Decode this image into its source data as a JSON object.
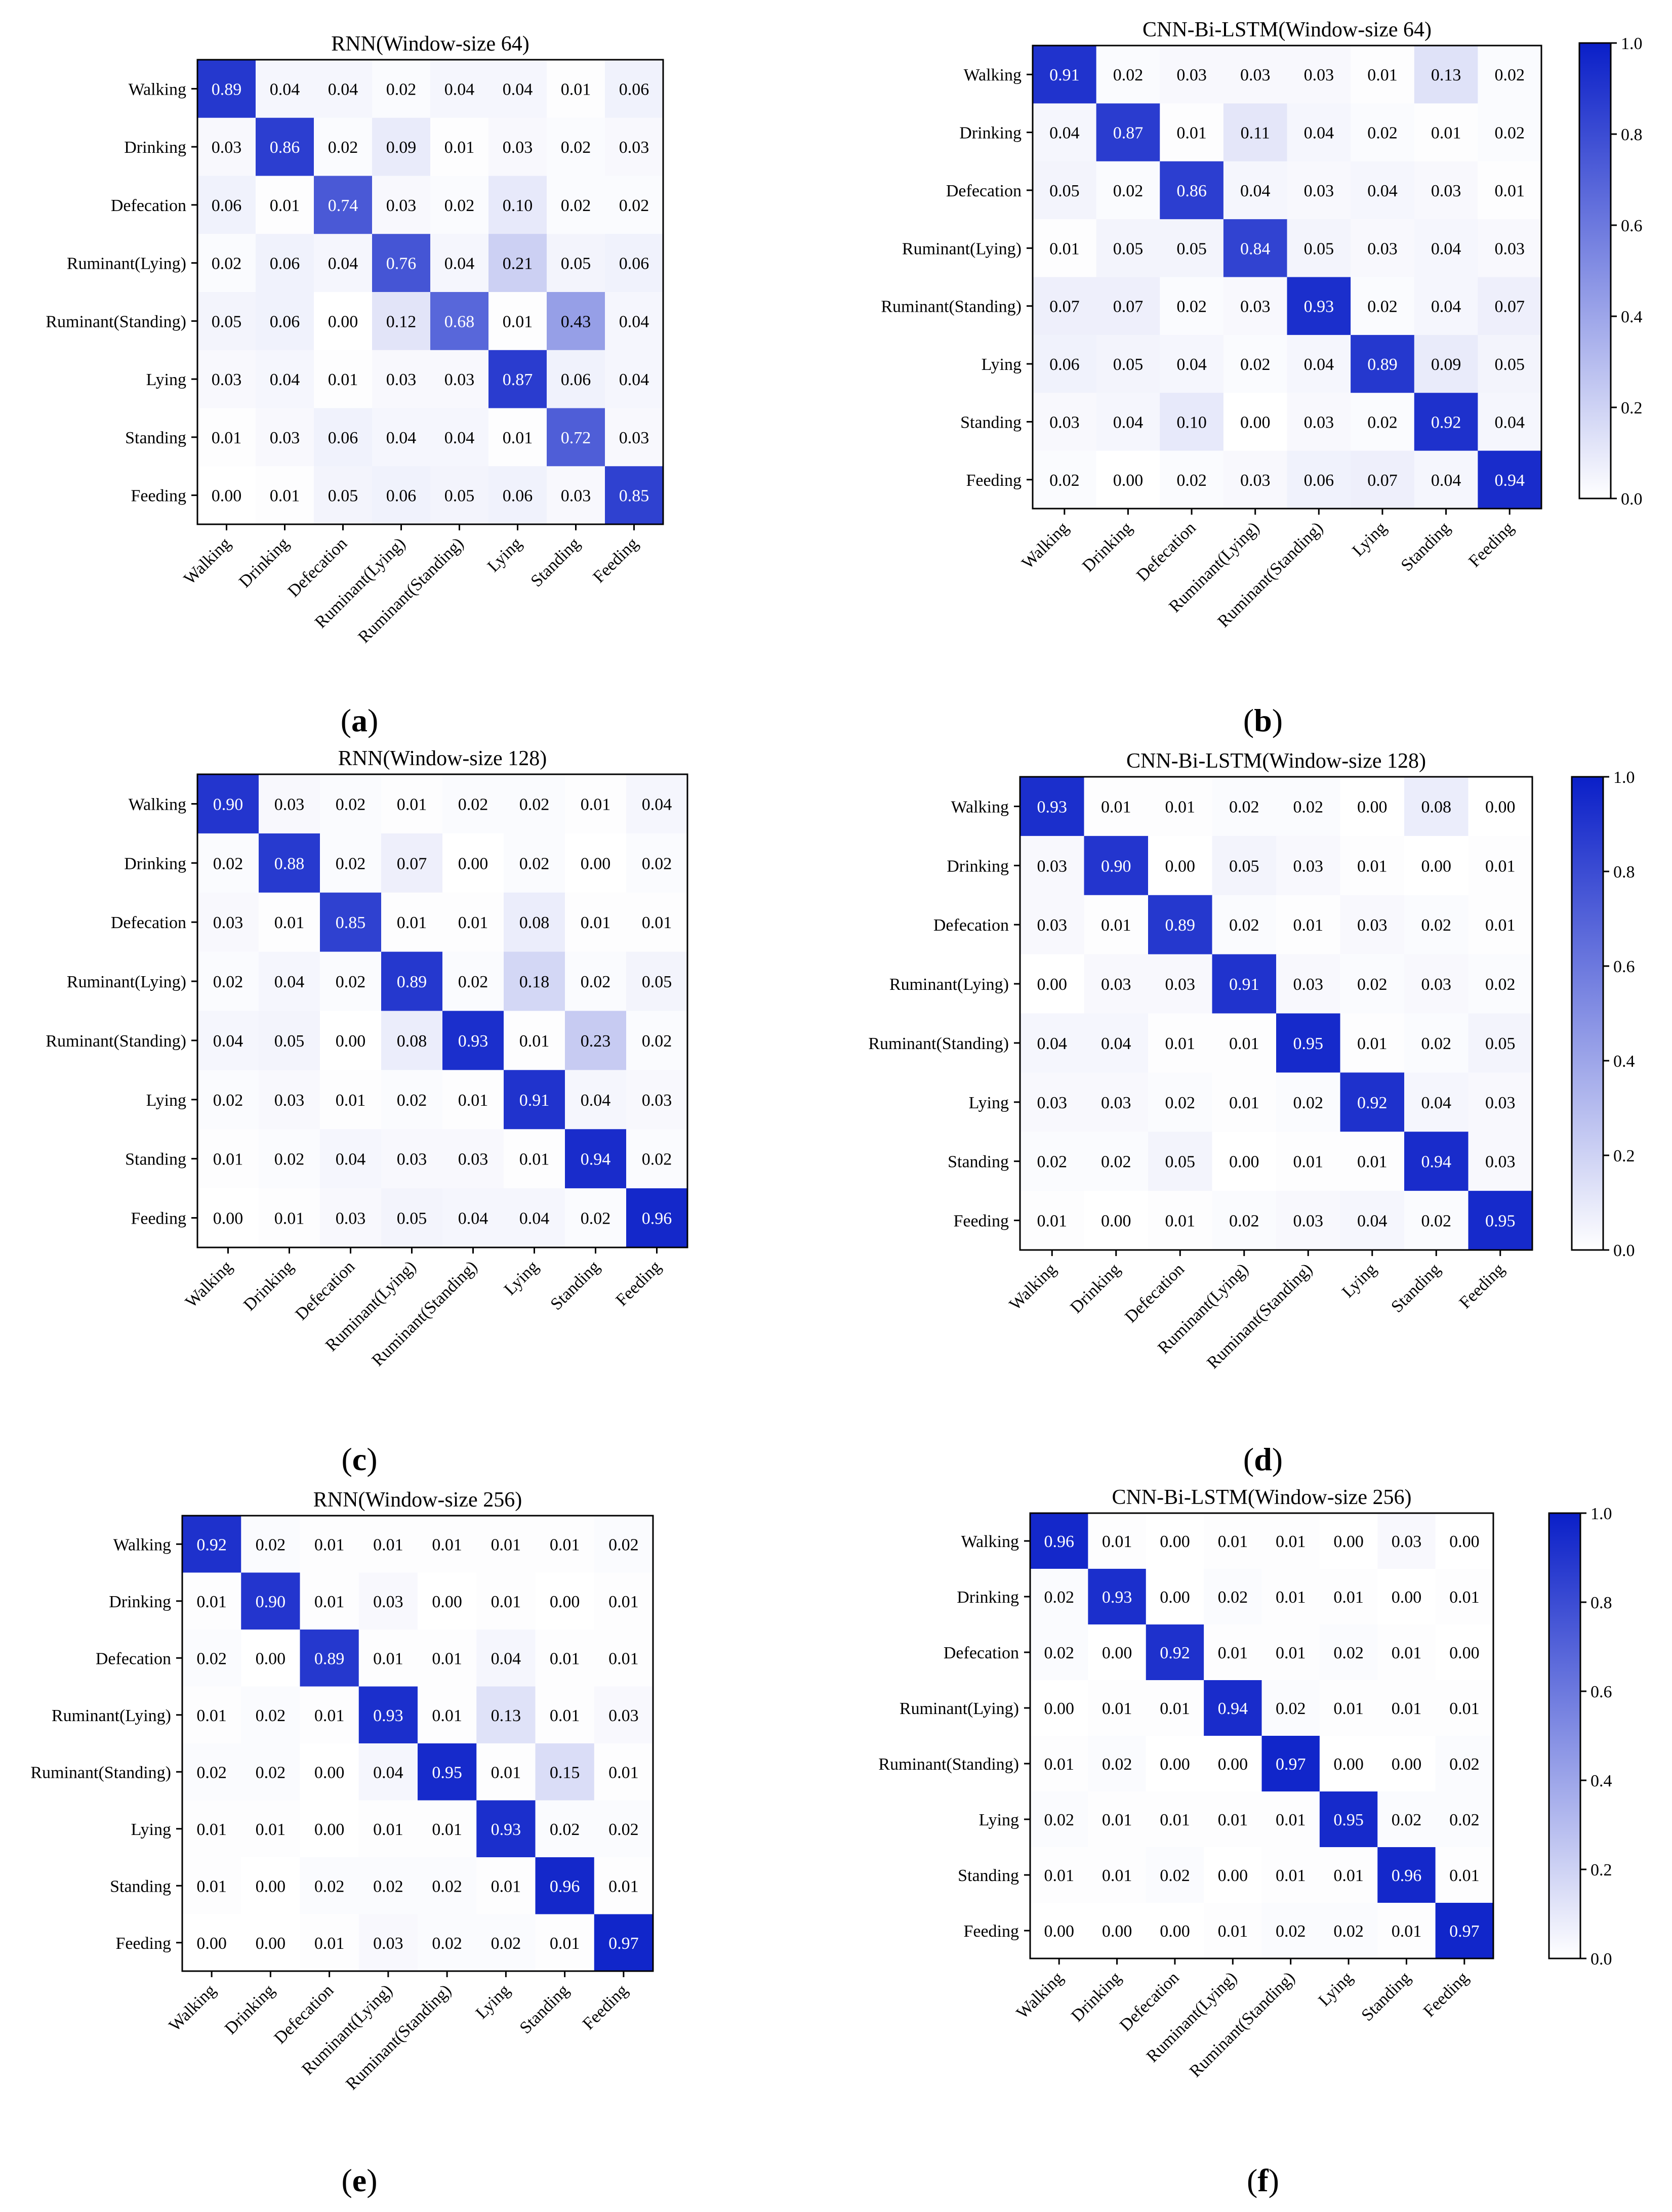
{
  "chart_data": [
    {
      "type": "heatmap",
      "panel": "a",
      "title": "RNN(Window-size 64)",
      "categories": [
        "Walking",
        "Drinking",
        "Defecation",
        "Ruminant(Lying)",
        "Ruminant(Standing)",
        "Lying",
        "Standing",
        "Feeding"
      ],
      "values": [
        [
          0.89,
          0.04,
          0.04,
          0.02,
          0.04,
          0.04,
          0.01,
          0.06
        ],
        [
          0.03,
          0.86,
          0.02,
          0.09,
          0.01,
          0.03,
          0.02,
          0.03
        ],
        [
          0.06,
          0.01,
          0.74,
          0.03,
          0.02,
          0.1,
          0.02,
          0.02
        ],
        [
          0.02,
          0.06,
          0.04,
          0.76,
          0.04,
          0.21,
          0.05,
          0.06
        ],
        [
          0.05,
          0.06,
          0.0,
          0.12,
          0.68,
          0.01,
          0.43,
          0.04
        ],
        [
          0.03,
          0.04,
          0.01,
          0.03,
          0.03,
          0.87,
          0.06,
          0.04
        ],
        [
          0.01,
          0.03,
          0.06,
          0.04,
          0.04,
          0.01,
          0.72,
          0.03
        ],
        [
          0.0,
          0.01,
          0.05,
          0.06,
          0.05,
          0.06,
          0.03,
          0.85
        ]
      ],
      "colorbar": null
    },
    {
      "type": "heatmap",
      "panel": "b",
      "title": "CNN-Bi-LSTM(Window-size 64)",
      "categories": [
        "Walking",
        "Drinking",
        "Defecation",
        "Ruminant(Lying)",
        "Ruminant(Standing)",
        "Lying",
        "Standing",
        "Feeding"
      ],
      "values": [
        [
          0.91,
          0.02,
          0.03,
          0.03,
          0.03,
          0.01,
          0.13,
          0.02
        ],
        [
          0.04,
          0.87,
          0.01,
          0.11,
          0.04,
          0.02,
          0.01,
          0.02
        ],
        [
          0.05,
          0.02,
          0.86,
          0.04,
          0.03,
          0.04,
          0.03,
          0.01
        ],
        [
          0.01,
          0.05,
          0.05,
          0.84,
          0.05,
          0.03,
          0.04,
          0.03
        ],
        [
          0.07,
          0.07,
          0.02,
          0.03,
          0.93,
          0.02,
          0.04,
          0.07
        ],
        [
          0.06,
          0.05,
          0.04,
          0.02,
          0.04,
          0.89,
          0.09,
          0.05
        ],
        [
          0.03,
          0.04,
          0.1,
          0.0,
          0.03,
          0.02,
          0.92,
          0.04
        ],
        [
          0.02,
          0.0,
          0.02,
          0.03,
          0.06,
          0.07,
          0.04,
          0.94
        ]
      ],
      "colorbar": {
        "ticks": [
          "0.0",
          "0.2",
          "0.4",
          "0.6",
          "0.8",
          "1.0"
        ],
        "range": [
          0,
          1
        ]
      }
    },
    {
      "type": "heatmap",
      "panel": "c",
      "title": "RNN(Window-size 128)",
      "categories": [
        "Walking",
        "Drinking",
        "Defecation",
        "Ruminant(Lying)",
        "Ruminant(Standing)",
        "Lying",
        "Standing",
        "Feeding"
      ],
      "values": [
        [
          0.9,
          0.03,
          0.02,
          0.01,
          0.02,
          0.02,
          0.01,
          0.04
        ],
        [
          0.02,
          0.88,
          0.02,
          0.07,
          0.0,
          0.02,
          0.0,
          0.02
        ],
        [
          0.03,
          0.01,
          0.85,
          0.01,
          0.01,
          0.08,
          0.01,
          0.01
        ],
        [
          0.02,
          0.04,
          0.02,
          0.89,
          0.02,
          0.18,
          0.02,
          0.05
        ],
        [
          0.04,
          0.05,
          0.0,
          0.08,
          0.93,
          0.01,
          0.23,
          0.02
        ],
        [
          0.02,
          0.03,
          0.01,
          0.02,
          0.01,
          0.91,
          0.04,
          0.03
        ],
        [
          0.01,
          0.02,
          0.04,
          0.03,
          0.03,
          0.01,
          0.94,
          0.02
        ],
        [
          0.0,
          0.01,
          0.03,
          0.05,
          0.04,
          0.04,
          0.02,
          0.96
        ]
      ],
      "colorbar": null
    },
    {
      "type": "heatmap",
      "panel": "d",
      "title": "CNN-Bi-LSTM(Window-size 128)",
      "categories": [
        "Walking",
        "Drinking",
        "Defecation",
        "Ruminant(Lying)",
        "Ruminant(Standing)",
        "Lying",
        "Standing",
        "Feeding"
      ],
      "values": [
        [
          0.93,
          0.01,
          0.01,
          0.02,
          0.02,
          0.0,
          0.08,
          0.0
        ],
        [
          0.03,
          0.9,
          0.0,
          0.05,
          0.03,
          0.01,
          0.0,
          0.01
        ],
        [
          0.03,
          0.01,
          0.89,
          0.02,
          0.01,
          0.03,
          0.02,
          0.01
        ],
        [
          0.0,
          0.03,
          0.03,
          0.91,
          0.03,
          0.02,
          0.03,
          0.02
        ],
        [
          0.04,
          0.04,
          0.01,
          0.01,
          0.95,
          0.01,
          0.02,
          0.05
        ],
        [
          0.03,
          0.03,
          0.02,
          0.01,
          0.02,
          0.92,
          0.04,
          0.03
        ],
        [
          0.02,
          0.02,
          0.05,
          0.0,
          0.01,
          0.01,
          0.94,
          0.03
        ],
        [
          0.01,
          0.0,
          0.01,
          0.02,
          0.03,
          0.04,
          0.02,
          0.95
        ]
      ],
      "colorbar": {
        "ticks": [
          "0.0",
          "0.2",
          "0.4",
          "0.6",
          "0.8",
          "1.0"
        ],
        "range": [
          0,
          1
        ]
      }
    },
    {
      "type": "heatmap",
      "panel": "e",
      "title": "RNN(Window-size 256)",
      "categories": [
        "Walking",
        "Drinking",
        "Defecation",
        "Ruminant(Lying)",
        "Ruminant(Standing)",
        "Lying",
        "Standing",
        "Feeding"
      ],
      "values": [
        [
          0.92,
          0.02,
          0.01,
          0.01,
          0.01,
          0.01,
          0.01,
          0.02
        ],
        [
          0.01,
          0.9,
          0.01,
          0.03,
          0.0,
          0.01,
          0.0,
          0.01
        ],
        [
          0.02,
          0.0,
          0.89,
          0.01,
          0.01,
          0.04,
          0.01,
          0.01
        ],
        [
          0.01,
          0.02,
          0.01,
          0.93,
          0.01,
          0.13,
          0.01,
          0.03
        ],
        [
          0.02,
          0.02,
          0.0,
          0.04,
          0.95,
          0.01,
          0.15,
          0.01
        ],
        [
          0.01,
          0.01,
          0.0,
          0.01,
          0.01,
          0.93,
          0.02,
          0.02
        ],
        [
          0.01,
          0.0,
          0.02,
          0.02,
          0.02,
          0.01,
          0.96,
          0.01
        ],
        [
          0.0,
          0.0,
          0.01,
          0.03,
          0.02,
          0.02,
          0.01,
          0.97
        ]
      ],
      "colorbar": null
    },
    {
      "type": "heatmap",
      "panel": "f",
      "title": "CNN-Bi-LSTM(Window-size 256)",
      "categories": [
        "Walking",
        "Drinking",
        "Defecation",
        "Ruminant(Lying)",
        "Ruminant(Standing)",
        "Lying",
        "Standing",
        "Feeding"
      ],
      "values": [
        [
          0.96,
          0.01,
          0.0,
          0.01,
          0.01,
          0.0,
          0.03,
          0.0
        ],
        [
          0.02,
          0.93,
          0.0,
          0.02,
          0.01,
          0.01,
          0.0,
          0.01
        ],
        [
          0.02,
          0.0,
          0.92,
          0.01,
          0.01,
          0.02,
          0.01,
          0.0
        ],
        [
          0.0,
          0.01,
          0.01,
          0.94,
          0.02,
          0.01,
          0.01,
          0.01
        ],
        [
          0.01,
          0.02,
          0.0,
          0.0,
          0.97,
          0.0,
          0.0,
          0.02
        ],
        [
          0.02,
          0.01,
          0.01,
          0.01,
          0.01,
          0.95,
          0.02,
          0.02
        ],
        [
          0.01,
          0.01,
          0.02,
          0.0,
          0.01,
          0.01,
          0.96,
          0.01
        ],
        [
          0.0,
          0.0,
          0.0,
          0.01,
          0.02,
          0.02,
          0.01,
          0.97
        ]
      ],
      "colorbar": {
        "ticks": [
          "0.0",
          "0.2",
          "0.4",
          "0.6",
          "0.8",
          "1.0"
        ],
        "range": [
          0,
          1
        ]
      }
    }
  ],
  "panel_labels": [
    "a",
    "b",
    "c",
    "d",
    "e",
    "f"
  ],
  "colors": {
    "high": "#0a1fc8",
    "low": "#ffffff",
    "axis": "#000000"
  }
}
